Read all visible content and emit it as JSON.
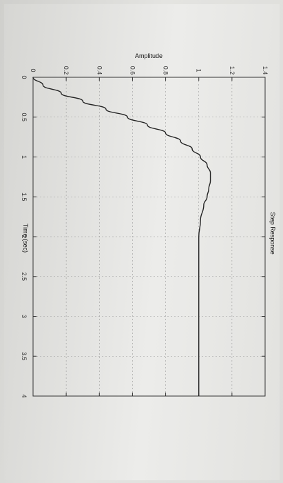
{
  "chart_data": {
    "type": "line",
    "title": "Step Response",
    "xlabel": "Time (sec)",
    "ylabel": "Amplitude",
    "xlim": [
      0,
      4
    ],
    "ylim": [
      0,
      1.4
    ],
    "x_ticks": [
      0,
      0.5,
      1,
      1.5,
      2,
      2.5,
      3,
      3.5,
      4
    ],
    "x_tick_labels": [
      "0",
      "0.5",
      "1",
      "1.5",
      "2",
      "2.5",
      "3",
      "3.5",
      "4"
    ],
    "y_ticks": [
      0,
      0.2,
      0.4,
      0.6,
      0.8,
      1,
      1.2,
      1.4
    ],
    "y_tick_labels": [
      "0",
      "0.2",
      "0.4",
      "0.6",
      "0.8",
      "1",
      "1.2",
      "1.4"
    ],
    "grid": true,
    "orientation_note_colors": {
      "line": "#222222",
      "grid": "#9a9a9a",
      "frame": "#333333"
    },
    "series": [
      {
        "x": [
          0,
          0.1,
          0.2,
          0.3,
          0.4,
          0.5,
          0.6,
          0.7,
          0.8,
          0.9,
          1.0,
          1.1,
          1.2,
          1.3,
          1.4,
          1.5,
          1.6,
          1.8,
          2.0,
          2.2,
          2.5,
          3.0,
          3.5,
          4.0
        ],
        "values": [
          0,
          0.06,
          0.17,
          0.3,
          0.44,
          0.57,
          0.69,
          0.8,
          0.89,
          0.96,
          1.01,
          1.05,
          1.07,
          1.07,
          1.06,
          1.05,
          1.03,
          1.01,
          1.0,
          1.0,
          1.0,
          1.0,
          1.0,
          1.0
        ]
      }
    ]
  }
}
